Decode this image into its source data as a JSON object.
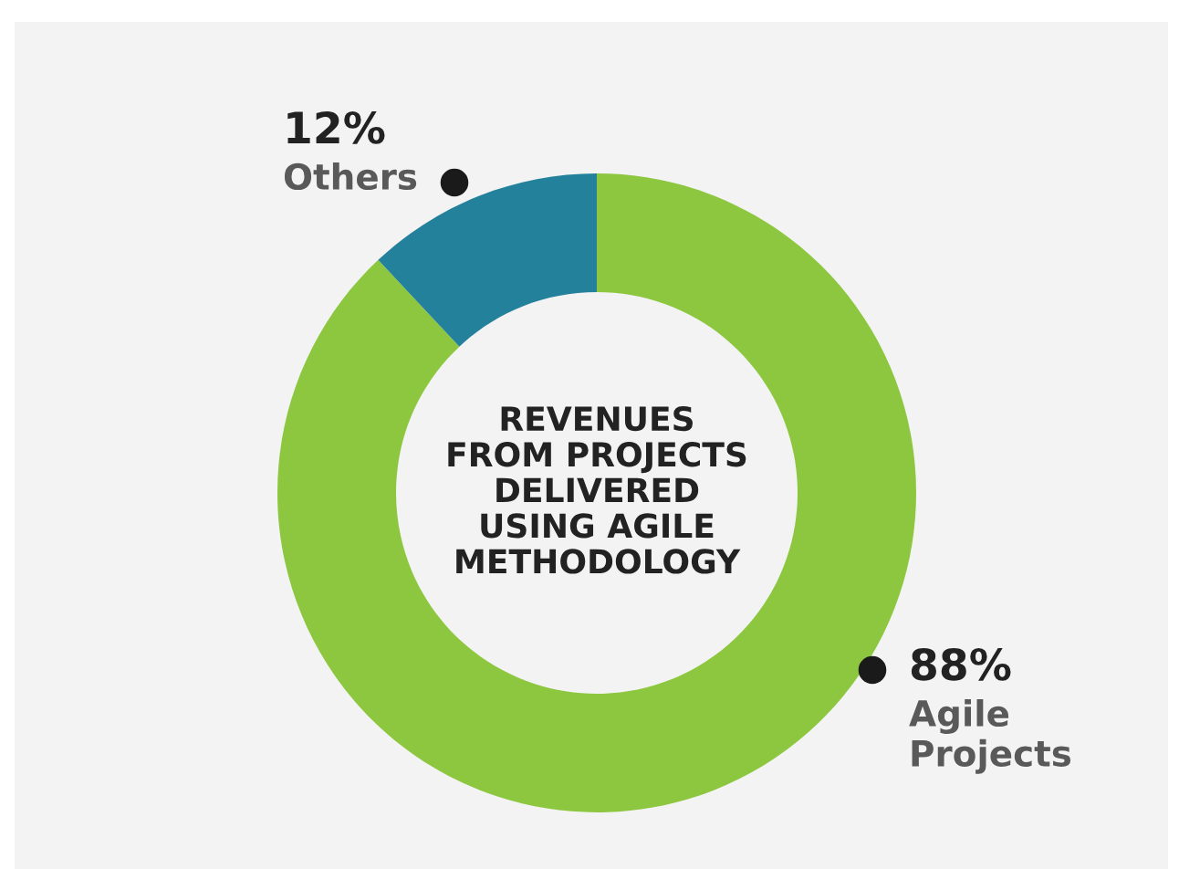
{
  "chart_data": {
    "type": "donut",
    "title": "REVENUES\nFROM PROJECTS\nDELIVERED\nUSING AGILE\nMETHODOLOGY",
    "categories": [
      "Agile Projects",
      "Others"
    ],
    "values": [
      88,
      12
    ],
    "colors": [
      "#8dc63f",
      "#24819b"
    ],
    "value_labels": [
      "88%",
      "12%"
    ]
  }
}
